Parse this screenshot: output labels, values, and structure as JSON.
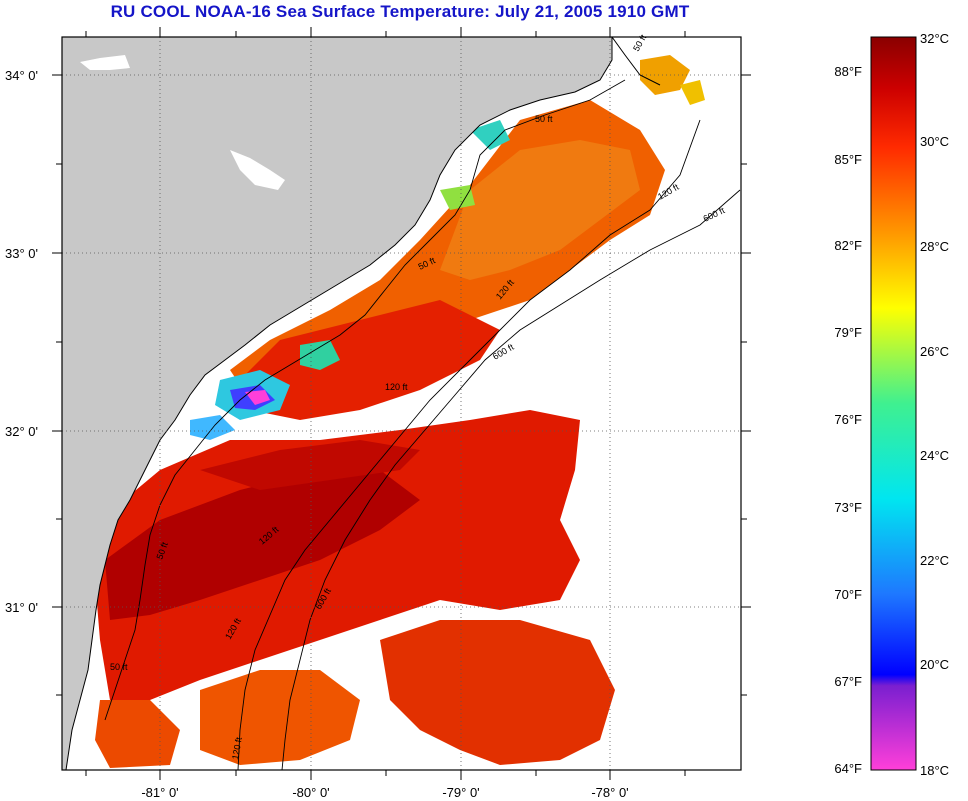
{
  "title": "RU COOL  NOAA-16  Sea Surface Temperature:  July 21, 2005 1910 GMT",
  "axes": {
    "lat_labels": [
      "34° 0'",
      "33° 0'",
      "32° 0'",
      "31° 0'"
    ],
    "lon_labels": [
      "-81° 0'",
      "-80° 0'",
      "-79° 0'",
      "-78° 0'"
    ]
  },
  "contour_labels": [
    "50 ft",
    "50 ft",
    "50 ft",
    "120 ft",
    "600 ft",
    "120 ft",
    "600 ft",
    "120 ft",
    "50 ft",
    "120 ft",
    "600 ft",
    "120 ft",
    "50 ft",
    "120 ft"
  ],
  "colorbar": {
    "fahrenheit_labels": [
      "88°F",
      "85°F",
      "82°F",
      "79°F",
      "76°F",
      "73°F",
      "70°F",
      "67°F",
      "64°F"
    ],
    "celsius_labels": [
      "32°C",
      "30°C",
      "28°C",
      "26°C",
      "24°C",
      "22°C",
      "20°C",
      "18°C"
    ]
  },
  "colors": {
    "land": "#c8c8c8",
    "cloud": "#ffffff",
    "title": "#1515c8",
    "sst_hot": "#b00000",
    "sst_warm": "#e62000",
    "sst_mid": "#f07000"
  }
}
